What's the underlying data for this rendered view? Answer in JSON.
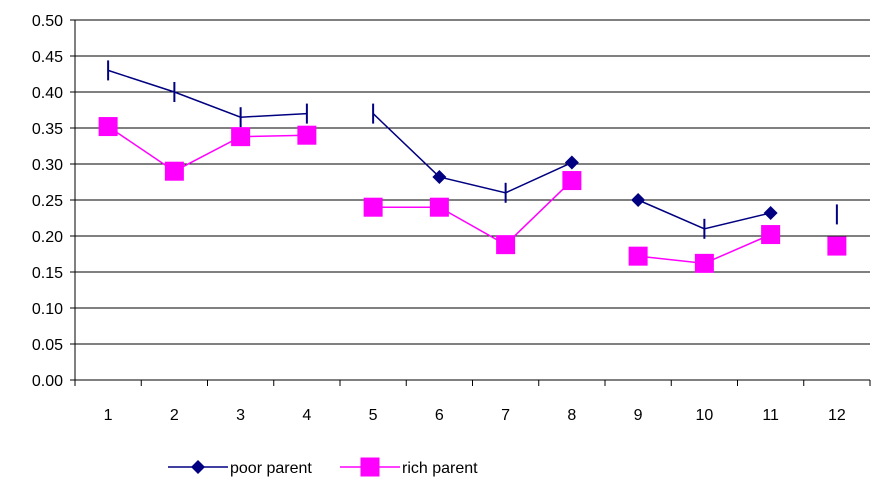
{
  "chart_data": {
    "type": "line",
    "title": "",
    "xlabel": "",
    "ylabel": "",
    "categories": [
      "1",
      "2",
      "3",
      "4",
      "5",
      "6",
      "7",
      "8",
      "9",
      "10",
      "11",
      "12"
    ],
    "ylim": [
      0,
      0.5
    ],
    "yticks": [
      "0.00",
      "0.05",
      "0.10",
      "0.15",
      "0.20",
      "0.25",
      "0.30",
      "0.35",
      "0.40",
      "0.45",
      "0.50"
    ],
    "grid": "horizontal",
    "legend_position": "bottom",
    "series": [
      {
        "name": "poor parent",
        "color": "#000080",
        "marker": "diamond",
        "values": [
          0.43,
          0.4,
          0.365,
          0.37,
          0.37,
          0.282,
          0.26,
          0.302,
          0.25,
          0.21,
          0.232,
          0.23
        ],
        "marker_shown": [
          false,
          false,
          false,
          false,
          false,
          true,
          false,
          true,
          true,
          false,
          true,
          false
        ],
        "segments": [
          [
            0,
            3
          ],
          [
            4,
            7
          ],
          [
            8,
            10
          ]
        ]
      },
      {
        "name": "rich parent",
        "color": "#FF00FF",
        "marker": "square",
        "values": [
          0.352,
          0.29,
          0.338,
          0.34,
          0.24,
          0.24,
          0.188,
          0.277,
          0.172,
          0.162,
          0.202,
          0.186
        ],
        "marker_shown": [
          true,
          true,
          true,
          true,
          true,
          true,
          true,
          true,
          true,
          true,
          true,
          true
        ],
        "segments": [
          [
            0,
            3
          ],
          [
            4,
            7
          ],
          [
            8,
            10
          ],
          [
            11,
            11
          ]
        ]
      }
    ]
  }
}
